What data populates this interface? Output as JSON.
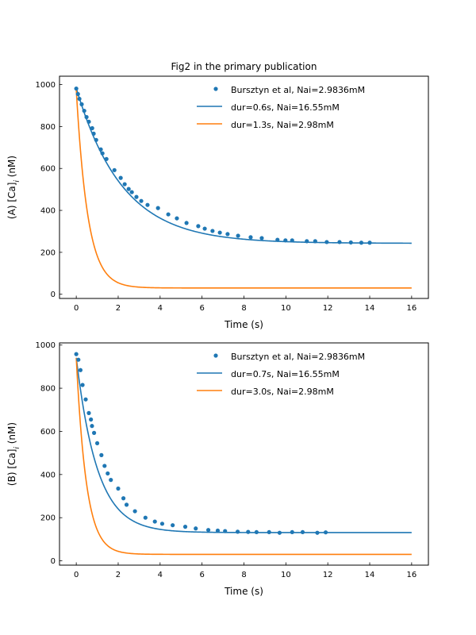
{
  "chart_data": [
    {
      "type": "line",
      "title": "Fig2 in the primary publication",
      "xlabel": "Time (s)",
      "ylabel": "(A) [Ca]$_i$ (nM)",
      "ylabel_parts": {
        "main": "(A) [Ca]",
        "sub": "i",
        "tail": " (nM)"
      },
      "xlim": [
        -0.8,
        16.8
      ],
      "ylim": [
        -20,
        1040
      ],
      "xticks": [
        0,
        2,
        4,
        6,
        8,
        10,
        12,
        14,
        16
      ],
      "yticks": [
        0,
        200,
        400,
        600,
        800,
        1000
      ],
      "legend_position": "top-right",
      "series": [
        {
          "name": "Bursztyn et al, Nai=2.9836mM",
          "kind": "scatter",
          "color": "#1f77b4",
          "x": [
            0,
            0.08,
            0.15,
            0.26,
            0.38,
            0.49,
            0.6,
            0.76,
            0.83,
            0.95,
            1.17,
            1.25,
            1.44,
            1.82,
            2.12,
            2.31,
            2.5,
            2.65,
            2.87,
            3.1,
            3.4,
            3.9,
            4.39,
            4.8,
            5.26,
            5.82,
            6.13,
            6.5,
            6.85,
            7.22,
            7.72,
            8.32,
            8.85,
            9.6,
            9.98,
            10.3,
            11.0,
            11.4,
            11.95,
            12.56,
            13.1,
            13.6,
            14.0
          ],
          "y": [
            981,
            955,
            932,
            906,
            875,
            845,
            823,
            792,
            766,
            736,
            691,
            672,
            645,
            592,
            555,
            525,
            502,
            487,
            464,
            445,
            426,
            411,
            381,
            362,
            340,
            325,
            313,
            302,
            294,
            287,
            279,
            272,
            268,
            260,
            257,
            257,
            253,
            253,
            249,
            249,
            247,
            246,
            246
          ]
        },
        {
          "name": "dur=0.6s, Nai=16.55mM",
          "kind": "line",
          "color": "#1f77b4",
          "model": {
            "form": "exp",
            "baseline": 243,
            "amplitude": 740,
            "tau": 2.2,
            "x0": 0,
            "x1": 16
          }
        },
        {
          "name": "dur=1.3s, Nai=2.98mM",
          "kind": "line",
          "color": "#ff7f0e",
          "model": {
            "form": "exp",
            "baseline": 30,
            "amplitude": 945,
            "tau": 0.55,
            "x0": 0,
            "x1": 16
          }
        }
      ]
    },
    {
      "type": "line",
      "title": "",
      "xlabel": "Time (s)",
      "ylabel": "(B) [Ca]$_i$ (nM)",
      "ylabel_parts": {
        "main": "(B) [Ca]",
        "sub": "i",
        "tail": " (nM)"
      },
      "xlim": [
        -0.8,
        16.8
      ],
      "ylim": [
        -20,
        1010
      ],
      "xticks": [
        0,
        2,
        4,
        6,
        8,
        10,
        12,
        14,
        16
      ],
      "yticks": [
        0,
        200,
        400,
        600,
        800,
        1000
      ],
      "legend_position": "top-right",
      "series": [
        {
          "name": "Bursztyn et al, Nai=2.9836mM",
          "kind": "scatter",
          "color": "#1f77b4",
          "x": [
            0,
            0.1,
            0.2,
            0.3,
            0.45,
            0.6,
            0.7,
            0.75,
            0.85,
            1.0,
            1.2,
            1.35,
            1.5,
            1.65,
            2.0,
            2.25,
            2.4,
            2.8,
            3.3,
            3.75,
            4.1,
            4.6,
            5.2,
            5.7,
            6.3,
            6.75,
            7.1,
            7.7,
            8.2,
            8.6,
            9.2,
            9.7,
            10.3,
            10.8,
            11.5,
            11.9
          ],
          "y": [
            958,
            932,
            884,
            815,
            748,
            685,
            655,
            625,
            593,
            545,
            490,
            440,
            405,
            375,
            335,
            290,
            260,
            230,
            200,
            182,
            172,
            165,
            158,
            150,
            143,
            140,
            138,
            135,
            134,
            133,
            133,
            130,
            133,
            133,
            130,
            132
          ]
        },
        {
          "name": "dur=0.7s, Nai=16.55mM",
          "kind": "line",
          "color": "#1f77b4",
          "model": {
            "form": "exp",
            "baseline": 131,
            "amplitude": 810,
            "tau": 1.0,
            "x0": 0,
            "x1": 16
          }
        },
        {
          "name": "dur=3.0s, Nai=2.98mM",
          "kind": "line",
          "color": "#ff7f0e",
          "model": {
            "form": "exp",
            "baseline": 30,
            "amplitude": 910,
            "tau": 0.48,
            "x0": 0,
            "x1": 16
          }
        }
      ]
    }
  ]
}
